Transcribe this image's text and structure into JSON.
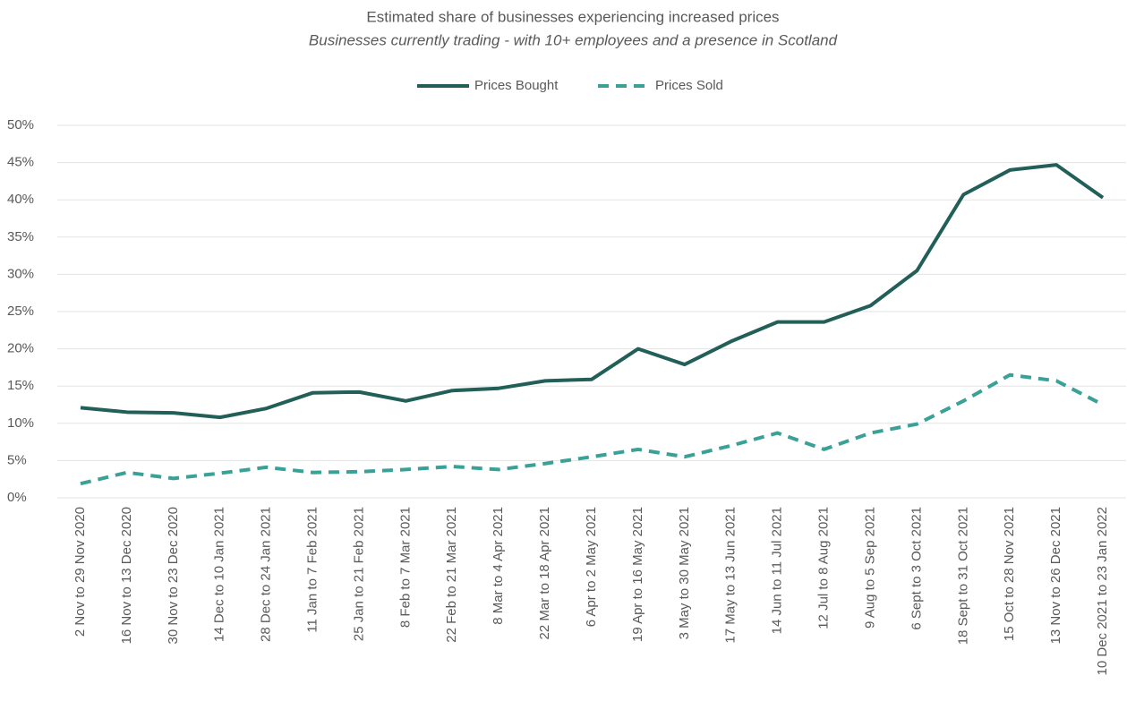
{
  "chart_data": {
    "type": "line",
    "title": "Estimated share of businesses experiencing increased prices",
    "subtitle": "Businesses currently trading - with 10+ employees and a presence in Scotland",
    "categories": [
      "2 Nov to 29 Nov 2020",
      "16 Nov to 13 Dec 2020",
      "30 Nov to 23 Dec 2020",
      "14 Dec to 10 Jan 2021",
      "28 Dec to 24 Jan 2021",
      "11 Jan to 7 Feb 2021",
      "25 Jan to 21 Feb 2021",
      "8 Feb to 7 Mar 2021",
      "22 Feb to 21 Mar 2021",
      "8 Mar to 4 Apr 2021",
      "22 Mar to 18 Apr 2021",
      "6 Apr to 2 May 2021",
      "19 Apr to 16 May 2021",
      "3 May to 30 May 2021",
      "17 May to 13 Jun 2021",
      "14 Jun to 11 Jul 2021",
      "12 Jul to 8 Aug 2021",
      "9 Aug to 5 Sep 2021",
      "6 Sept to 3 Oct 2021",
      "18 Sept to 31 Oct 2021",
      "15 Oct to 28 Nov 2021",
      "13 Nov to 26 Dec 2021",
      "10 Dec 2021 to 23 Jan 2022"
    ],
    "series": [
      {
        "name": "Prices Bought",
        "color": "#215f58",
        "dash": false,
        "values": [
          12.1,
          11.5,
          11.4,
          10.8,
          12.0,
          14.1,
          14.2,
          13.0,
          14.4,
          14.7,
          15.7,
          15.9,
          20.0,
          17.9,
          21.0,
          23.6,
          23.6,
          25.8,
          30.5,
          40.7,
          44.0,
          44.7,
          40.3
        ]
      },
      {
        "name": "Prices Sold",
        "color": "#3aa197",
        "dash": true,
        "values": [
          1.9,
          3.4,
          2.6,
          3.3,
          4.1,
          3.4,
          3.5,
          3.8,
          4.2,
          3.8,
          4.6,
          5.5,
          6.5,
          5.5,
          7.0,
          8.7,
          6.5,
          8.7,
          9.9,
          13.0,
          16.5,
          15.7,
          12.5
        ]
      }
    ],
    "ylim": [
      0,
      50
    ],
    "yticks": [
      {
        "value": 0,
        "label": "0%"
      },
      {
        "value": 5,
        "label": "5%"
      },
      {
        "value": 10,
        "label": "10%"
      },
      {
        "value": 15,
        "label": "15%"
      },
      {
        "value": 20,
        "label": "20%"
      },
      {
        "value": 25,
        "label": "25%"
      },
      {
        "value": 30,
        "label": "30%"
      },
      {
        "value": 35,
        "label": "35%"
      },
      {
        "value": 40,
        "label": "40%"
      },
      {
        "value": 45,
        "label": "45%"
      },
      {
        "value": 50,
        "label": "50%"
      }
    ],
    "grid": true,
    "legend": "top"
  }
}
